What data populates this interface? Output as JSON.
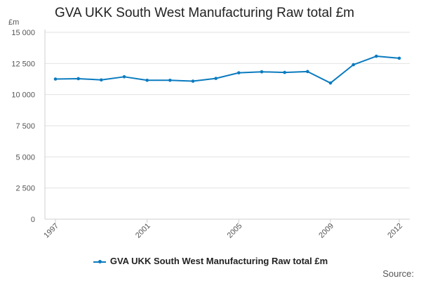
{
  "chart_data": {
    "type": "line",
    "title": "GVA UKK South West Manufacturing Raw total £m",
    "unit_label": "£m",
    "xlabel": "",
    "ylabel": "",
    "x": [
      1997,
      1998,
      1999,
      2000,
      2001,
      2002,
      2003,
      2004,
      2005,
      2006,
      2007,
      2008,
      2009,
      2010,
      2011,
      2012
    ],
    "x_tick_labels": [
      "1997",
      "2001",
      "2005",
      "2009",
      "2012"
    ],
    "y_tick_labels": [
      "0",
      "2 500",
      "5 000",
      "7 500",
      "10 000",
      "12 500",
      "15 000"
    ],
    "ylim": [
      0,
      15000
    ],
    "series": [
      {
        "name": "GVA UKK South West Manufacturing Raw total £m",
        "color": "#0b7bbf",
        "values": [
          11250,
          11280,
          11180,
          11430,
          11150,
          11150,
          11080,
          11300,
          11750,
          11830,
          11780,
          11850,
          10930,
          12400,
          13080,
          12920
        ]
      }
    ],
    "grid": "horizontal",
    "legend_position": "bottom",
    "source_label": "Source:"
  }
}
